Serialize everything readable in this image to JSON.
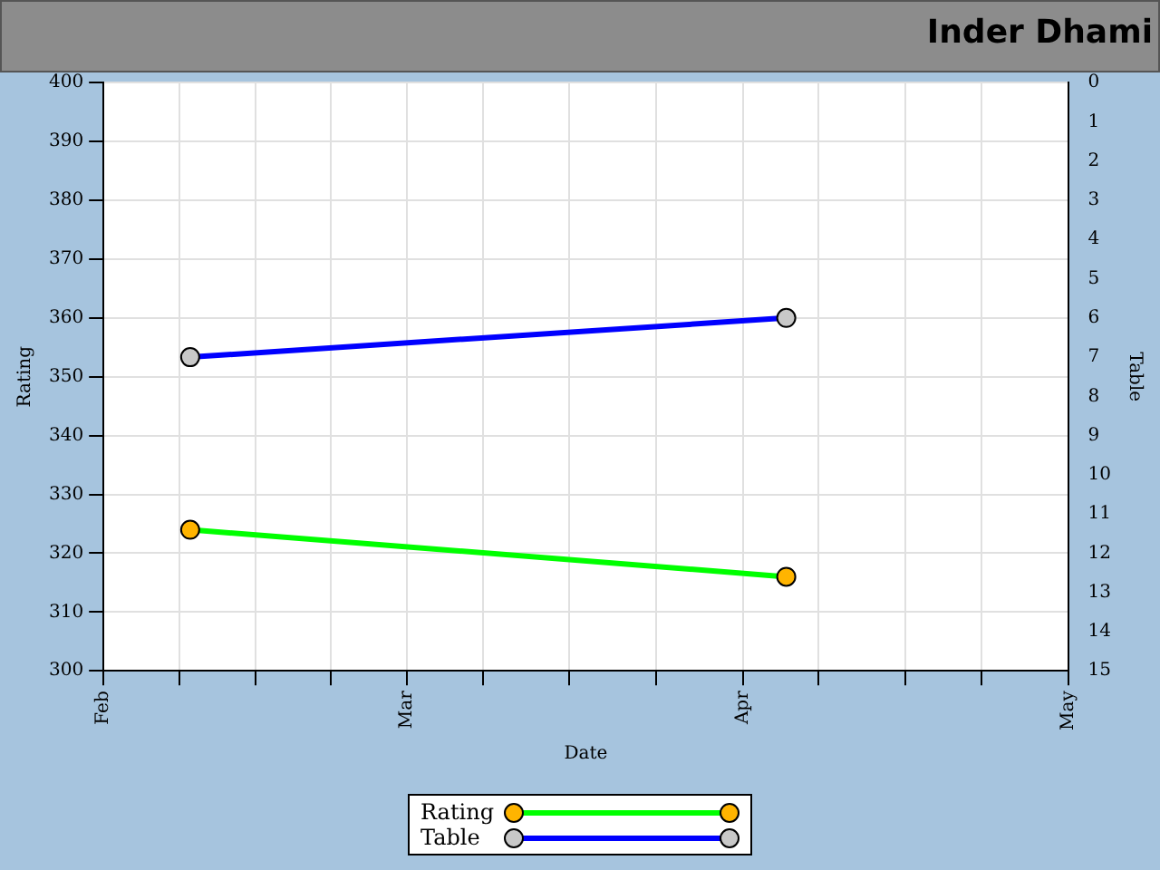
{
  "chart_data": {
    "type": "line",
    "title": "Inder Dhami",
    "xlabel": "Date",
    "ylabel": "Rating",
    "y2label": "Table",
    "x": [
      "--02-09",
      "--04-05"
    ],
    "series": [
      {
        "name": "Rating",
        "color": "#00ff00",
        "values": [
          324,
          316
        ]
      },
      {
        "name": "Table",
        "color": "#0000ff",
        "values": [
          7,
          6
        ],
        "axis": "y2"
      }
    ],
    "xlim": [
      "--02-01",
      "--05-01"
    ],
    "xticks": [
      {
        "value": "--02-01",
        "label": "Feb"
      },
      {
        "value": "--02-08",
        "label": null
      },
      {
        "value": "--02-15",
        "label": null
      },
      {
        "value": "--02-22",
        "label": null
      },
      {
        "value": "--03-01",
        "label": "Mar"
      },
      {
        "value": "--03-08",
        "label": null
      },
      {
        "value": "--03-16",
        "label": null
      },
      {
        "value": "--03-24",
        "label": null
      },
      {
        "value": "--04-01",
        "label": "Apr"
      },
      {
        "value": "--04-08",
        "label": null
      },
      {
        "value": "--04-16",
        "label": null
      },
      {
        "value": "--04-23",
        "label": null
      },
      {
        "value": "--05-01",
        "label": "May"
      }
    ],
    "ylim": [
      300,
      400
    ],
    "yticks": [
      300,
      310,
      320,
      330,
      340,
      350,
      360,
      370,
      380,
      390,
      400
    ],
    "y2lim": [
      15,
      0
    ],
    "y2ticks": [
      0,
      1,
      2,
      3,
      4,
      5,
      6,
      7,
      8,
      9,
      10,
      11,
      12,
      13,
      14,
      15
    ],
    "grid": true,
    "legend": "bottom",
    "marker": "circle",
    "line_style": "solid"
  }
}
